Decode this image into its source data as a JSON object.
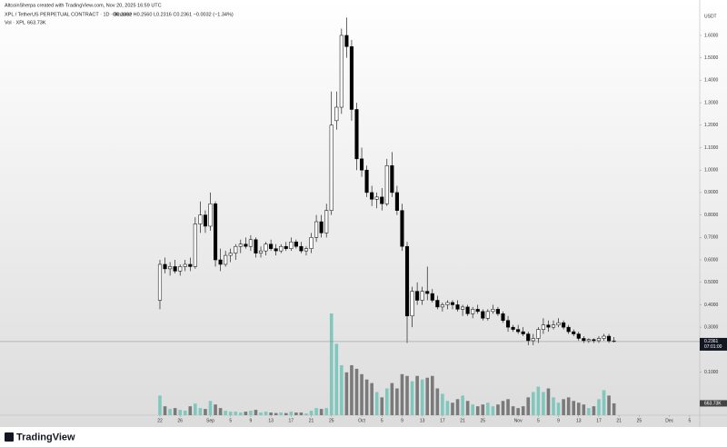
{
  "header": {
    "credit": "AltcoinSherpa created with TradingView.com, Nov 20, 2025 16:59 UTC",
    "symbol": "XPL / TetherUS PERPETUAL CONTRACT · 1D · Binance",
    "ohlc": "O0.2392 H0.2560 L0.2316 C0.2361 −0.0032 (−1.34%)"
  },
  "chart_data": {
    "type": "candlestick",
    "currency": "USDT",
    "countdown": "07:01:00",
    "up_color": "#ffffff",
    "down_color": "#000000",
    "volume_up_color": "#80c8bd",
    "volume_down_color": "#7a7a7a",
    "x": [
      0,
      1,
      2,
      3,
      4,
      5,
      6,
      7,
      8,
      9,
      10,
      11,
      12,
      13,
      14,
      15,
      16,
      17,
      18,
      19,
      20,
      21,
      22,
      23,
      24,
      25,
      26,
      27,
      28,
      29,
      30,
      31,
      32,
      33,
      34,
      35,
      36,
      37,
      38,
      39,
      40,
      41,
      42,
      43,
      44,
      45,
      46,
      47,
      48,
      49,
      50,
      51,
      52,
      53,
      54,
      55,
      56,
      57,
      58,
      59,
      60,
      61,
      62,
      63,
      64,
      65,
      66,
      67,
      68,
      69,
      70,
      71,
      72,
      73,
      74,
      75,
      76,
      77,
      78,
      79,
      80,
      81,
      82,
      83,
      84,
      85,
      86,
      87,
      88,
      89,
      90
    ],
    "open": [
      0.42,
      0.58,
      0.56,
      0.57,
      0.55,
      0.57,
      0.58,
      0.57,
      0.76,
      0.8,
      0.75,
      0.85,
      0.6,
      0.58,
      0.62,
      0.63,
      0.66,
      0.67,
      0.66,
      0.69,
      0.63,
      0.64,
      0.67,
      0.65,
      0.64,
      0.66,
      0.65,
      0.68,
      0.66,
      0.64,
      0.65,
      0.7,
      0.77,
      0.72,
      0.82,
      1.22,
      1.28,
      1.6,
      1.55,
      1.27,
      1.05,
      1.0,
      0.9,
      0.87,
      0.88,
      0.85,
      1.02,
      0.9,
      0.82,
      0.66,
      0.35,
      0.46,
      0.42,
      0.46,
      0.45,
      0.42,
      0.39,
      0.4,
      0.41,
      0.4,
      0.38,
      0.39,
      0.36,
      0.38,
      0.37,
      0.34,
      0.37,
      0.38,
      0.36,
      0.33,
      0.3,
      0.29,
      0.28,
      0.27,
      0.24,
      0.25,
      0.29,
      0.31,
      0.3,
      0.31,
      0.32,
      0.3,
      0.28,
      0.27,
      0.25,
      0.24,
      0.245,
      0.24,
      0.25,
      0.26,
      0.2392
    ],
    "high": [
      0.6,
      0.61,
      0.59,
      0.6,
      0.58,
      0.6,
      0.61,
      0.79,
      0.86,
      0.82,
      0.9,
      0.86,
      0.65,
      0.64,
      0.65,
      0.67,
      0.69,
      0.7,
      0.71,
      0.7,
      0.66,
      0.68,
      0.69,
      0.67,
      0.67,
      0.68,
      0.7,
      0.69,
      0.68,
      0.66,
      0.72,
      0.8,
      0.8,
      0.85,
      1.35,
      1.35,
      1.63,
      1.68,
      1.58,
      1.3,
      1.1,
      1.02,
      0.93,
      0.9,
      0.92,
      1.05,
      1.08,
      0.93,
      0.85,
      0.68,
      0.48,
      0.5,
      0.48,
      0.57,
      0.47,
      0.44,
      0.41,
      0.42,
      0.42,
      0.42,
      0.4,
      0.4,
      0.39,
      0.4,
      0.38,
      0.38,
      0.4,
      0.39,
      0.37,
      0.35,
      0.31,
      0.31,
      0.3,
      0.28,
      0.27,
      0.3,
      0.34,
      0.33,
      0.33,
      0.34,
      0.33,
      0.31,
      0.29,
      0.28,
      0.26,
      0.25,
      0.25,
      0.26,
      0.27,
      0.27,
      0.256
    ],
    "low": [
      0.38,
      0.54,
      0.53,
      0.54,
      0.53,
      0.55,
      0.55,
      0.56,
      0.72,
      0.72,
      0.73,
      0.57,
      0.55,
      0.57,
      0.59,
      0.6,
      0.63,
      0.65,
      0.64,
      0.61,
      0.61,
      0.62,
      0.64,
      0.62,
      0.63,
      0.64,
      0.64,
      0.65,
      0.63,
      0.62,
      0.63,
      0.68,
      0.7,
      0.7,
      0.8,
      1.18,
      1.25,
      1.5,
      1.22,
      1.0,
      0.97,
      0.88,
      0.84,
      0.83,
      0.82,
      0.84,
      0.88,
      0.8,
      0.64,
      0.23,
      0.3,
      0.4,
      0.4,
      0.42,
      0.41,
      0.38,
      0.37,
      0.38,
      0.38,
      0.37,
      0.35,
      0.35,
      0.34,
      0.36,
      0.33,
      0.33,
      0.36,
      0.35,
      0.32,
      0.28,
      0.28,
      0.27,
      0.26,
      0.22,
      0.22,
      0.23,
      0.27,
      0.28,
      0.29,
      0.3,
      0.29,
      0.27,
      0.26,
      0.24,
      0.23,
      0.23,
      0.23,
      0.23,
      0.24,
      0.23,
      0.2316
    ],
    "close": [
      0.58,
      0.56,
      0.57,
      0.55,
      0.57,
      0.58,
      0.57,
      0.76,
      0.8,
      0.75,
      0.85,
      0.6,
      0.58,
      0.62,
      0.63,
      0.66,
      0.67,
      0.66,
      0.69,
      0.63,
      0.64,
      0.67,
      0.65,
      0.64,
      0.66,
      0.65,
      0.68,
      0.66,
      0.64,
      0.65,
      0.7,
      0.77,
      0.72,
      0.82,
      1.2,
      1.28,
      1.6,
      1.55,
      1.27,
      1.05,
      1.0,
      0.9,
      0.87,
      0.88,
      0.85,
      1.02,
      0.9,
      0.82,
      0.66,
      0.35,
      0.46,
      0.42,
      0.46,
      0.45,
      0.42,
      0.39,
      0.4,
      0.41,
      0.4,
      0.38,
      0.39,
      0.36,
      0.38,
      0.37,
      0.34,
      0.37,
      0.38,
      0.36,
      0.33,
      0.3,
      0.29,
      0.28,
      0.27,
      0.24,
      0.25,
      0.29,
      0.31,
      0.3,
      0.31,
      0.32,
      0.3,
      0.28,
      0.27,
      0.25,
      0.24,
      0.245,
      0.24,
      0.25,
      0.26,
      0.2392,
      0.2361
    ],
    "volume": {
      "name": "Vol · XPL",
      "values": [
        1100,
        500,
        350,
        400,
        300,
        250,
        500,
        650,
        400,
        350,
        800,
        600,
        400,
        250,
        200,
        200,
        150,
        200,
        250,
        300,
        150,
        200,
        150,
        120,
        150,
        120,
        200,
        150,
        150,
        100,
        250,
        400,
        350,
        400,
        5700,
        4000,
        2800,
        2400,
        2800,
        2600,
        2300,
        2000,
        1800,
        1300,
        1000,
        1500,
        1800,
        1500,
        2300,
        2200,
        1900,
        2200,
        2000,
        2100,
        2200,
        1500,
        1200,
        800,
        700,
        900,
        1100,
        800,
        600,
        500,
        600,
        700,
        500,
        600,
        800,
        900,
        500,
        400,
        500,
        1000,
        1300,
        1600,
        1300,
        1500,
        1000,
        700,
        900,
        1000,
        800,
        700,
        600,
        400,
        500,
        900,
        1400,
        1100,
        663.73
      ],
      "value_labels": [
        null,
        null,
        null,
        null,
        null,
        null,
        null,
        null,
        null,
        null,
        null,
        null,
        null,
        null,
        null,
        null,
        null,
        null,
        null,
        null,
        null,
        null,
        null,
        null,
        null,
        null,
        null,
        null,
        null,
        null,
        null,
        null,
        null,
        null,
        null,
        null,
        null,
        null,
        null,
        null,
        null,
        null,
        null,
        null,
        null,
        null,
        null,
        null,
        null,
        null,
        null,
        null,
        null,
        null,
        null,
        null,
        null,
        null,
        null,
        null,
        null,
        null,
        null,
        null,
        null,
        null,
        null,
        null,
        null,
        null,
        null,
        null,
        null,
        null,
        null,
        null,
        null,
        null,
        null,
        null,
        null,
        null,
        null,
        null,
        null,
        null,
        null,
        null,
        null,
        null,
        "663.73K"
      ]
    },
    "xlim": [
      -31.7,
      107
    ],
    "xticks": [
      {
        "value": 0,
        "label": "22"
      },
      {
        "value": 4,
        "label": "26"
      },
      {
        "value": 10,
        "label": "Sep"
      },
      {
        "value": 14,
        "label": "5"
      },
      {
        "value": 18,
        "label": "9"
      },
      {
        "value": 22,
        "label": "13"
      },
      {
        "value": 26,
        "label": "17"
      },
      {
        "value": 30,
        "label": "21"
      },
      {
        "value": 34,
        "label": "25"
      },
      {
        "value": 40,
        "label": "Oct"
      },
      {
        "value": 44,
        "label": "5"
      },
      {
        "value": 48,
        "label": "9"
      },
      {
        "value": 52,
        "label": "13"
      },
      {
        "value": 56,
        "label": "17"
      },
      {
        "value": 60,
        "label": "21"
      },
      {
        "value": 64,
        "label": "25"
      },
      {
        "value": 71,
        "label": "Nov"
      },
      {
        "value": 75,
        "label": "5"
      },
      {
        "value": 79,
        "label": "9"
      },
      {
        "value": 83,
        "label": "13"
      },
      {
        "value": 87,
        "label": "17"
      },
      {
        "value": 91,
        "label": "21"
      },
      {
        "value": 95,
        "label": "25"
      },
      {
        "value": 101,
        "label": "Dec"
      },
      {
        "value": 105,
        "label": "5"
      }
    ],
    "ylim": [
      -0.092,
      1.701
    ],
    "yticks": [
      {
        "value": 0.1,
        "label": "0.1000"
      },
      {
        "value": 0.2,
        "label": "0.2000"
      },
      {
        "value": 0.3,
        "label": "0.3000"
      },
      {
        "value": 0.4,
        "label": "0.4000"
      },
      {
        "value": 0.5,
        "label": "0.5000"
      },
      {
        "value": 0.6,
        "label": "0.6000"
      },
      {
        "value": 0.7,
        "label": "0.7000"
      },
      {
        "value": 0.8,
        "label": "0.8000"
      },
      {
        "value": 0.9,
        "label": "0.9000"
      },
      {
        "value": 1.0,
        "label": "1.0000"
      },
      {
        "value": 1.1,
        "label": "1.1000"
      },
      {
        "value": 1.2,
        "label": "1.2000"
      },
      {
        "value": 1.3,
        "label": "1.3000"
      },
      {
        "value": 1.4,
        "label": "1.4000"
      },
      {
        "value": 1.5,
        "label": "1.5000"
      },
      {
        "value": 1.6,
        "label": "1.6000"
      }
    ]
  },
  "footer": {
    "brand": "TradingView"
  }
}
